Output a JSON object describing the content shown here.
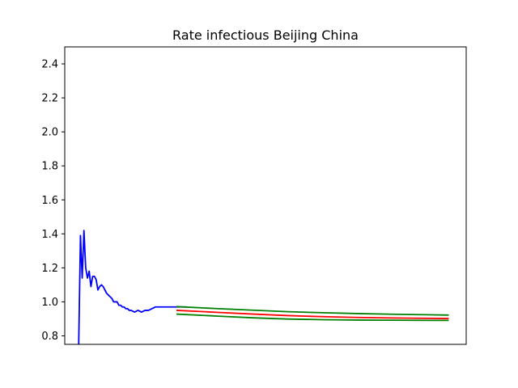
{
  "chart_data": {
    "type": "line",
    "title": "Rate infectious Beijing China",
    "xlabel": "",
    "ylabel": "",
    "ylim": [
      0.75,
      2.5
    ],
    "xlim": [
      -8,
      222
    ],
    "x_ticks_shown": false,
    "grid": false,
    "legend": "none",
    "y_ticks": [
      0.8,
      1.0,
      1.2,
      1.4,
      1.6,
      1.8,
      2.0,
      2.2,
      2.4
    ],
    "y_tick_labels": [
      "0.8",
      "1.0",
      "1.2",
      "1.4",
      "1.6",
      "1.8",
      "2.0",
      "2.2",
      "2.4"
    ],
    "series": [
      {
        "color": "#0000ff",
        "x": [
          0,
          1,
          2,
          3,
          4,
          5,
          6,
          7,
          8,
          9,
          10,
          11,
          12,
          13,
          14,
          15,
          16,
          17,
          18,
          19,
          20,
          21,
          22,
          23,
          24,
          25,
          26,
          27,
          28,
          29,
          30,
          32,
          34,
          36,
          38,
          40,
          42,
          44,
          46,
          48,
          50,
          52,
          54,
          56,
          58,
          60,
          62
        ],
        "y": [
          0.75,
          1.39,
          1.14,
          1.42,
          1.2,
          1.14,
          1.18,
          1.09,
          1.15,
          1.15,
          1.13,
          1.07,
          1.09,
          1.1,
          1.09,
          1.07,
          1.05,
          1.04,
          1.03,
          1.02,
          1.0,
          1.0,
          1.0,
          0.98,
          0.98,
          0.97,
          0.97,
          0.96,
          0.96,
          0.95,
          0.95,
          0.94,
          0.95,
          0.94,
          0.95,
          0.95,
          0.96,
          0.97,
          0.97,
          0.97,
          0.97,
          0.97,
          0.97,
          0.97,
          0.97,
          0.97,
          0.97
        ]
      },
      {
        "color": "#ff0000",
        "x": [
          56,
          80,
          100,
          120,
          140,
          160,
          180,
          200,
          212
        ],
        "y": [
          0.95,
          0.938,
          0.928,
          0.919,
          0.913,
          0.908,
          0.905,
          0.903,
          0.902
        ]
      },
      {
        "color": "#008000",
        "x": [
          56,
          80,
          100,
          120,
          140,
          160,
          180,
          200,
          212
        ],
        "y": [
          0.972,
          0.96,
          0.951,
          0.942,
          0.936,
          0.931,
          0.927,
          0.924,
          0.922
        ]
      },
      {
        "color": "#008000",
        "x": [
          56,
          80,
          100,
          120,
          140,
          160,
          180,
          200,
          212
        ],
        "y": [
          0.928,
          0.916,
          0.906,
          0.899,
          0.895,
          0.893,
          0.892,
          0.891,
          0.891
        ]
      }
    ]
  }
}
